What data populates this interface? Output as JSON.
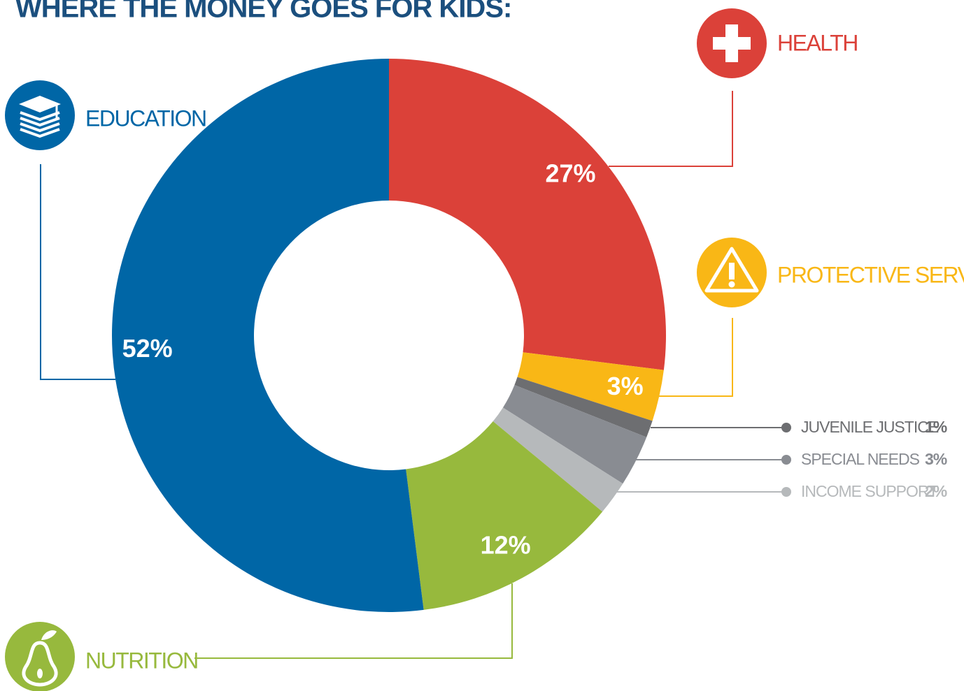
{
  "chart_data": {
    "type": "donut",
    "title": "WHERE THE MONEY GOES FOR KIDS:",
    "categories": [
      "HEALTH",
      "PROTECTIVE SERVICES",
      "JUVENILE JUSTICE",
      "SPECIAL NEEDS",
      "INCOME SUPPORT",
      "NUTRITION",
      "EDUCATION"
    ],
    "values": [
      27,
      3,
      1,
      3,
      2,
      12,
      52
    ],
    "value_labels": [
      "27%",
      "3%",
      "1%",
      "3%",
      "2%",
      "12%",
      "52%"
    ],
    "colors": [
      "#db4139",
      "#f9b716",
      "#6d6e71",
      "#898c92",
      "#b6b9bb",
      "#97b93d",
      "#0066a6"
    ]
  }
}
